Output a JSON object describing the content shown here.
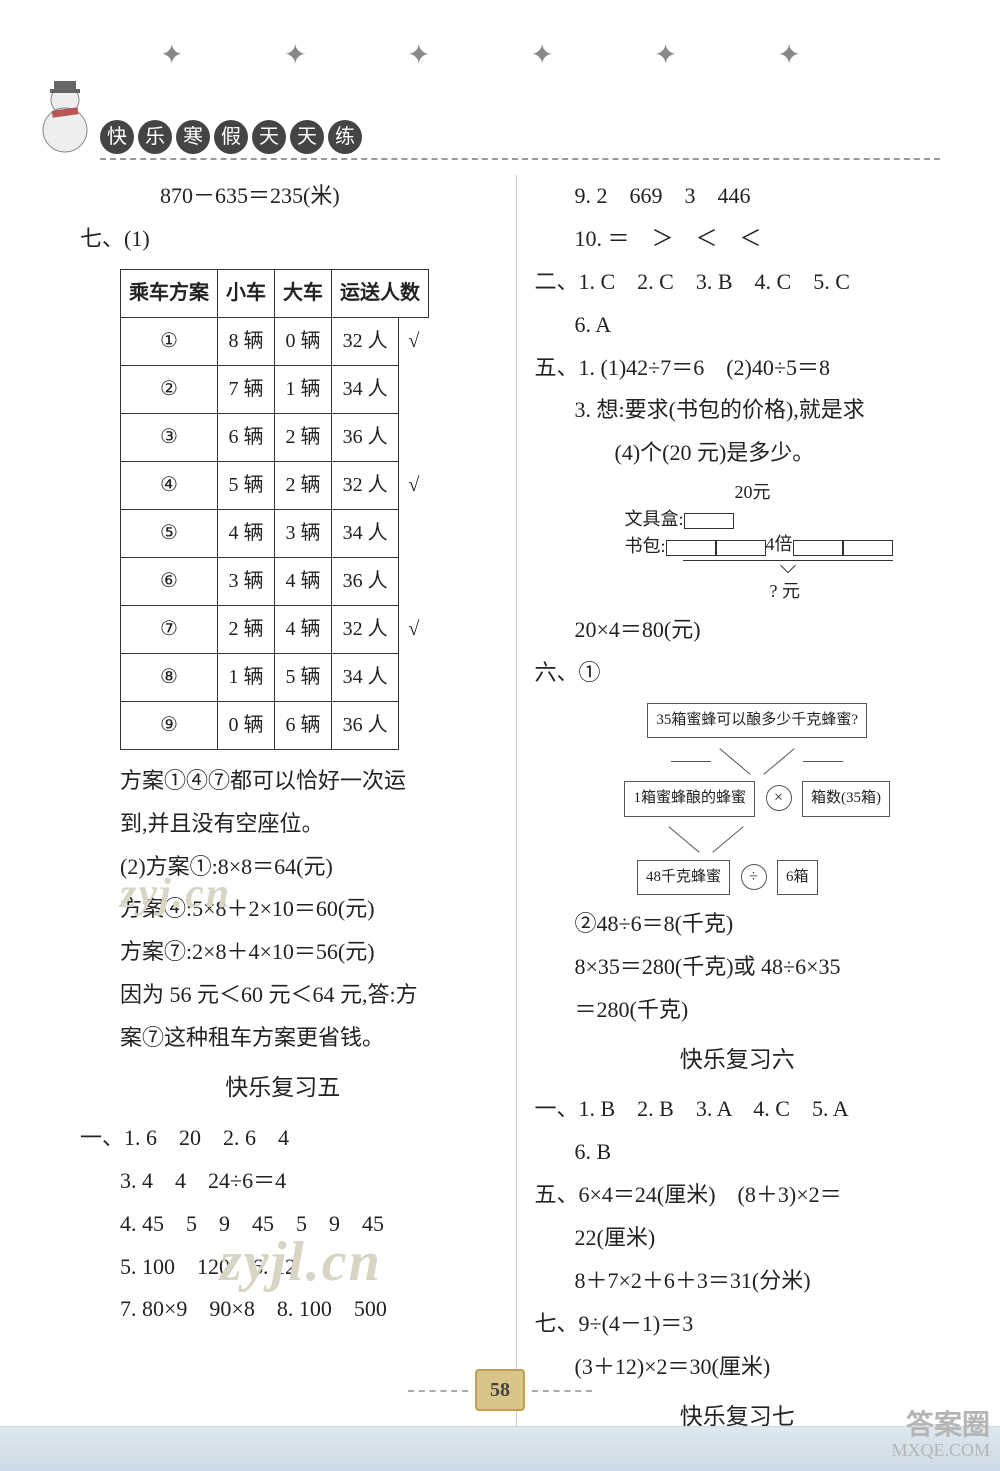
{
  "header": {
    "ribbon_chars": [
      "快",
      "乐",
      "寒",
      "假",
      "天",
      "天",
      "练"
    ],
    "star_glyph": "✦"
  },
  "pageNumber": "58",
  "watermarks": {
    "w1": "zyj.cn",
    "w2": "zyjl.cn",
    "corner_top": "答案圈",
    "corner_bottom": "MXQE.COM"
  },
  "left": {
    "l0": "870－635＝235(米)",
    "l1": "七、(1)",
    "table": {
      "headers": [
        "乘车方案",
        "小车",
        "大车",
        "运送人数",
        ""
      ],
      "rows": [
        [
          "①",
          "8 辆",
          "0 辆",
          "32 人",
          "√"
        ],
        [
          "②",
          "7 辆",
          "1 辆",
          "34 人",
          ""
        ],
        [
          "③",
          "6 辆",
          "2 辆",
          "36 人",
          ""
        ],
        [
          "④",
          "5 辆",
          "2 辆",
          "32 人",
          "√"
        ],
        [
          "⑤",
          "4 辆",
          "3 辆",
          "34 人",
          ""
        ],
        [
          "⑥",
          "3 辆",
          "4 辆",
          "36 人",
          ""
        ],
        [
          "⑦",
          "2 辆",
          "4 辆",
          "32 人",
          "√"
        ],
        [
          "⑧",
          "1 辆",
          "5 辆",
          "34 人",
          ""
        ],
        [
          "⑨",
          "0 辆",
          "6 辆",
          "36 人",
          ""
        ]
      ]
    },
    "p1": "方案①④⑦都可以恰好一次运",
    "p2": "到,并且没有空座位。",
    "p3": "(2)方案①:8×8＝64(元)",
    "p4": "方案④:5×8＋2×10＝60(元)",
    "p5": "方案⑦:2×8＋4×10＝56(元)",
    "p6": "因为 56 元＜60 元＜64 元,答:方",
    "p7": "案⑦这种租车方案更省钱。",
    "sec5": "快乐复习五",
    "s5_1": "一、1. 6　20　2. 6　4",
    "s5_2": "3. 4　4　24÷6＝4",
    "s5_3": "4. 45　5　9　45　5　9　45",
    "s5_4": "5. 100　120　6. 12",
    "s5_5": "7. 80×9　90×8　8. 100　500"
  },
  "right": {
    "r1": "9. 2　669　3　446",
    "r2": "10. ＝　＞　＜　＜",
    "r3": "二、1. C　2. C　3. B　4. C　5. C",
    "r4": "6. A",
    "r5": "五、1. (1)42÷7＝6　(2)40÷5＝8",
    "r6": "3. 想:要求(书包的价格),就是求",
    "r7": "(4)个(20 元)是多少。",
    "bar": {
      "top_label": "20元",
      "row1_label": "文具盒:",
      "row2_label": "书包:",
      "row2_mid": "4倍",
      "brace_label": "? 元"
    },
    "r8": "20×4＝80(元)",
    "r9": "六、①",
    "diagram": {
      "top": "35箱蜜蜂可以酿多少千克蜂蜜?",
      "mid_left": "1箱蜜蜂酿的蜂蜜",
      "mid_op": "×",
      "mid_right": "箱数(35箱)",
      "bot_left": "48千克蜂蜜",
      "bot_op": "÷",
      "bot_right": "6箱"
    },
    "r10": "②48÷6＝8(千克)",
    "r11": "8×35＝280(千克)或 48÷6×35",
    "r12": "＝280(千克)",
    "sec6": "快乐复习六",
    "s6_1": "一、1. B　2. B　3. A　4. C　5. A",
    "s6_2": "6. B",
    "s6_3": "五、6×4＝24(厘米)　(8＋3)×2＝",
    "s6_4": "22(厘米)",
    "s6_5": "8＋7×2＋6＋3＝31(分米)",
    "s6_6": "七、9÷(4－1)＝3",
    "s6_7": "(3＋12)×2＝30(厘米)",
    "sec7": "快乐复习七"
  }
}
